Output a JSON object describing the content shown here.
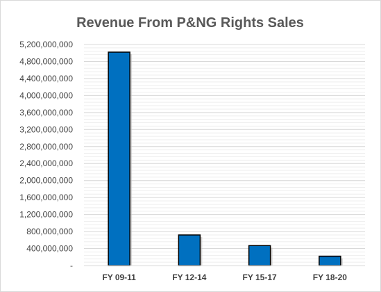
{
  "chart_data": {
    "type": "bar",
    "title": "Revenue From P&NG Rights Sales",
    "xlabel": "",
    "ylabel": "",
    "categories": [
      "FY 09-11",
      "FY 12-14",
      "FY 15-17",
      "FY 18-20"
    ],
    "series": [
      {
        "values": [
          5020000000,
          720000000,
          470000000,
          220000000
        ]
      }
    ],
    "ylim": [
      0,
      5200000000
    ],
    "yticks": [
      0,
      400000000,
      800000000,
      1200000000,
      1600000000,
      2000000000,
      2400000000,
      2800000000,
      3200000000,
      3600000000,
      4000000000,
      4400000000,
      4800000000,
      5200000000
    ],
    "ytick_labels": [
      "-",
      "400,000,000",
      "800,000,000",
      "1,200,000,000",
      "1,600,000,000",
      "2,000,000,000",
      "2,400,000,000",
      "2,800,000,000",
      "3,200,000,000",
      "3,600,000,000",
      "4,000,000,000",
      "4,400,000,000",
      "4,800,000,000",
      "5,200,000,000"
    ],
    "grid": true,
    "legend": "none",
    "colors": {
      "bar": "#0070c0",
      "bar_edge": "#000000",
      "grid": "#d9d9d9",
      "text": "#404040",
      "title": "#595959"
    }
  }
}
